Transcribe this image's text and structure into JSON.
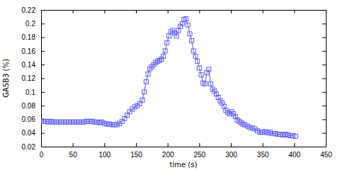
{
  "chart_data": {
    "type": "line",
    "x_label": "time (s)",
    "y_label": "GASB3 (%)",
    "color": "#5b5bff",
    "marker": "square",
    "x": [
      0,
      4,
      8,
      12,
      16,
      20,
      24,
      28,
      32,
      36,
      40,
      44,
      48,
      52,
      56,
      60,
      64,
      68,
      72,
      76,
      80,
      84,
      88,
      92,
      96,
      100,
      104,
      108,
      112,
      116,
      120,
      124,
      128,
      132,
      136,
      140,
      144,
      148,
      152,
      156,
      160,
      163,
      166,
      169,
      172,
      175,
      178,
      181,
      184,
      187,
      190,
      193,
      196,
      199,
      202,
      205,
      208,
      211,
      214,
      217,
      220,
      223,
      226,
      229,
      232,
      235,
      238,
      241,
      244,
      247,
      250,
      253,
      256,
      259,
      262,
      265,
      268,
      271,
      274,
      277,
      280,
      283,
      286,
      289,
      292,
      295,
      298,
      301,
      304,
      307,
      310,
      313,
      316,
      319,
      322,
      326,
      330,
      334,
      338,
      342,
      346,
      350,
      354,
      358,
      362,
      366,
      370,
      374,
      378,
      382,
      386,
      390,
      394,
      398,
      402
    ],
    "values": [
      0.058,
      0.057,
      0.057,
      0.056,
      0.057,
      0.056,
      0.056,
      0.056,
      0.056,
      0.056,
      0.056,
      0.056,
      0.056,
      0.056,
      0.056,
      0.056,
      0.056,
      0.056,
      0.057,
      0.057,
      0.057,
      0.056,
      0.056,
      0.055,
      0.056,
      0.054,
      0.053,
      0.053,
      0.052,
      0.052,
      0.052,
      0.054,
      0.057,
      0.061,
      0.066,
      0.071,
      0.075,
      0.078,
      0.08,
      0.083,
      0.088,
      0.1,
      0.115,
      0.126,
      0.134,
      0.137,
      0.14,
      0.143,
      0.145,
      0.146,
      0.148,
      0.152,
      0.16,
      0.172,
      0.182,
      0.188,
      0.19,
      0.186,
      0.182,
      0.19,
      0.196,
      0.2,
      0.206,
      0.207,
      0.198,
      0.185,
      0.175,
      0.16,
      0.152,
      0.145,
      0.135,
      0.125,
      0.113,
      0.112,
      0.128,
      0.133,
      0.112,
      0.104,
      0.101,
      0.097,
      0.092,
      0.087,
      0.084,
      0.079,
      0.073,
      0.07,
      0.068,
      0.071,
      0.068,
      0.064,
      0.059,
      0.057,
      0.055,
      0.053,
      0.052,
      0.05,
      0.048,
      0.047,
      0.046,
      0.043,
      0.041,
      0.041,
      0.042,
      0.04,
      0.041,
      0.039,
      0.039,
      0.038,
      0.038,
      0.037,
      0.038,
      0.037,
      0.036,
      0.036,
      0.035
    ],
    "xlim": [
      0,
      450
    ],
    "xticks": [
      0,
      50,
      100,
      150,
      200,
      250,
      300,
      350,
      400,
      450
    ],
    "ylim": [
      0.02,
      0.22
    ],
    "yticks": [
      0.02,
      0.04,
      0.06,
      0.08,
      0.1,
      0.12,
      0.14,
      0.16,
      0.18,
      0.2,
      0.22
    ]
  }
}
